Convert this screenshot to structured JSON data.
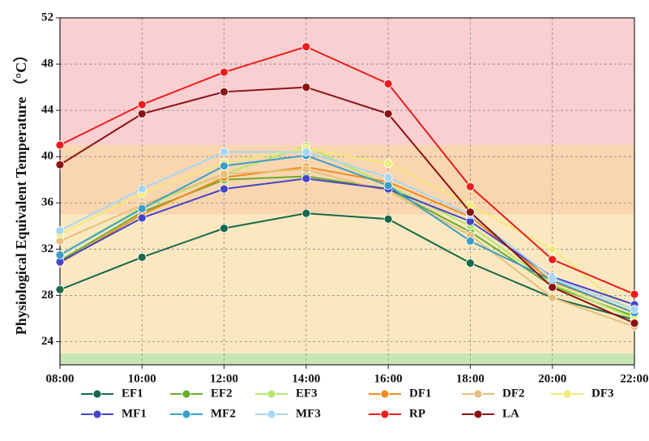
{
  "chart_data": {
    "type": "line",
    "y_label": "Physiological Equivalent Temperature （°C）",
    "categories": [
      "08:00",
      "10:00",
      "12:00",
      "14:00",
      "16:00",
      "18:00",
      "20:00",
      "22:00"
    ],
    "ylim": [
      22,
      52
    ],
    "yticks": [
      24,
      28,
      32,
      36,
      40,
      44,
      48,
      52
    ],
    "grid": true,
    "bands": [
      {
        "from": 22,
        "to": 23,
        "color": "#c8e6b4"
      },
      {
        "from": 23,
        "to": 35,
        "color": "#fbe8c0"
      },
      {
        "from": 35,
        "to": 41,
        "color": "#f9d6b0"
      },
      {
        "from": 41,
        "to": 52,
        "color": "#f9cfd2"
      }
    ],
    "series": [
      {
        "name": "EF1",
        "color": "#17694a",
        "values": [
          28.5,
          31.3,
          33.8,
          35.1,
          34.6,
          30.8,
          27.8,
          25.9
        ]
      },
      {
        "name": "EF2",
        "color": "#6aab2e",
        "values": [
          31.0,
          35.2,
          38.0,
          38.3,
          37.2,
          33.5,
          28.8,
          26.2
        ]
      },
      {
        "name": "EF3",
        "color": "#b3e86a",
        "values": [
          31.5,
          35.6,
          38.5,
          40.9,
          37.5,
          34.0,
          29.0,
          26.0
        ]
      },
      {
        "name": "DF1",
        "color": "#f08c1e",
        "values": [
          30.8,
          35.0,
          38.2,
          39.1,
          37.8,
          34.8,
          29.2,
          26.5
        ]
      },
      {
        "name": "DF2",
        "color": "#e6bf7a",
        "values": [
          32.7,
          35.8,
          38.5,
          38.9,
          37.0,
          33.2,
          27.8,
          25.3
        ]
      },
      {
        "name": "DF3",
        "color": "#f0ea78",
        "values": [
          33.3,
          36.8,
          39.5,
          40.7,
          39.4,
          35.8,
          32.0,
          26.2
        ]
      },
      {
        "name": "MF1",
        "color": "#4545c8",
        "values": [
          30.9,
          34.7,
          37.2,
          38.1,
          37.2,
          34.4,
          29.6,
          27.2
        ]
      },
      {
        "name": "MF2",
        "color": "#3a9fc8",
        "values": [
          31.5,
          35.5,
          39.2,
          40.1,
          37.5,
          32.7,
          29.3,
          26.5
        ]
      },
      {
        "name": "MF3",
        "color": "#a6d6f5",
        "values": [
          33.6,
          37.2,
          40.4,
          40.4,
          38.2,
          35.0,
          29.5,
          26.8
        ]
      },
      {
        "name": "RP",
        "color": "#ee1c1c",
        "values": [
          41.0,
          44.5,
          47.3,
          49.5,
          46.3,
          37.4,
          31.1,
          28.1
        ]
      },
      {
        "name": "LA",
        "color": "#8b1212",
        "values": [
          39.3,
          43.7,
          45.6,
          46.0,
          43.7,
          35.2,
          28.7,
          25.6
        ]
      }
    ]
  }
}
